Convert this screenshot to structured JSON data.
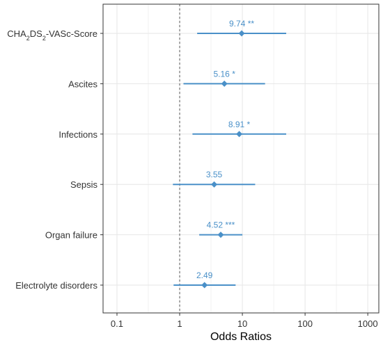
{
  "chart_data": {
    "type": "forest",
    "xlabel": "Odds Ratios",
    "x_scale": "log10",
    "xlim": [
      0.06,
      1500
    ],
    "x_ticks": [
      0.1,
      1,
      10,
      100,
      1000
    ],
    "x_tick_labels": [
      "0.1",
      "1",
      "10",
      "100",
      "1000"
    ],
    "reference_line": 1,
    "grid": true,
    "color": "#4a90c8",
    "rows": [
      {
        "label": "CHA2DS2-VASc-Score",
        "label_parts": [
          {
            "t": "CHA"
          },
          {
            "t": "2",
            "sub": true
          },
          {
            "t": "DS"
          },
          {
            "t": "2",
            "sub": true
          },
          {
            "t": "-VASc-Score"
          }
        ],
        "or": 9.74,
        "ci_low": 1.9,
        "ci_high": 50,
        "annotation": "9.74 **"
      },
      {
        "label": "Ascites",
        "or": 5.16,
        "ci_low": 1.15,
        "ci_high": 23,
        "annotation": "5.16 *"
      },
      {
        "label": "Infections",
        "or": 8.91,
        "ci_low": 1.6,
        "ci_high": 50,
        "annotation": "8.91 *"
      },
      {
        "label": "Sepsis",
        "or": 3.55,
        "ci_low": 0.78,
        "ci_high": 16,
        "annotation": "3.55"
      },
      {
        "label": "Organ failure",
        "or": 4.52,
        "ci_low": 2.05,
        "ci_high": 10,
        "annotation": "4.52 ***"
      },
      {
        "label": "Electrolyte disorders",
        "or": 2.49,
        "ci_low": 0.8,
        "ci_high": 7.8,
        "annotation": "2.49"
      }
    ]
  }
}
